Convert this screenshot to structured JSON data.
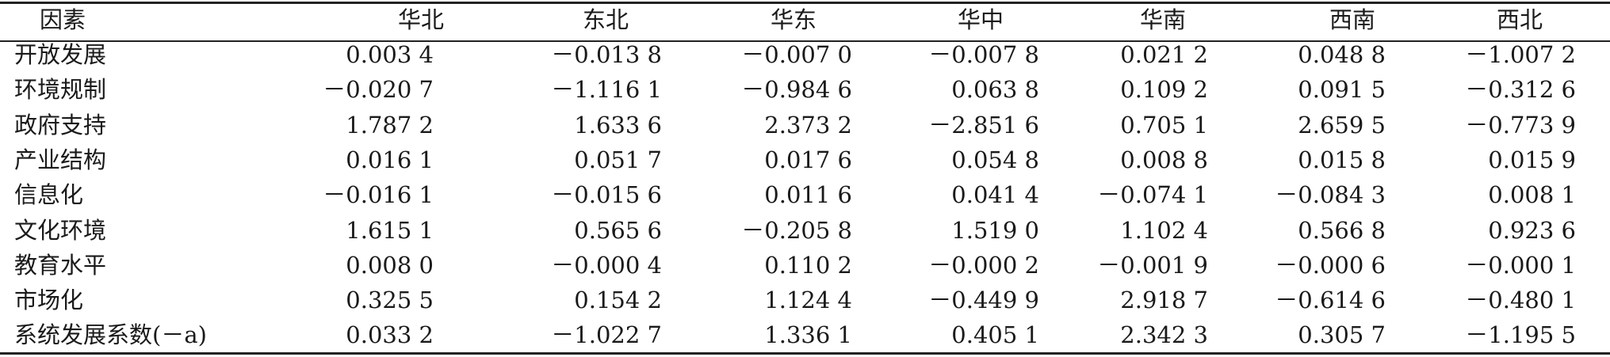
{
  "table": {
    "header": [
      "因素",
      "华北",
      "东北",
      "华东",
      "华中",
      "华南",
      "西南",
      "西北"
    ],
    "rows": [
      [
        "开放发展",
        "0.003 4",
        "－0.013 8",
        "－0.007 0",
        "－0.007 8",
        "0.021 2",
        "0.048 8",
        "－1.007 2"
      ],
      [
        "环境规制",
        "－0.020 7",
        "－1.116 1",
        "－0.984 6",
        "0.063 8",
        "0.109 2",
        "0.091 5",
        "－0.312 6"
      ],
      [
        "政府支持",
        "1.787 2",
        "1.633 6",
        "2.373 2",
        "－2.851 6",
        "0.705 1",
        "2.659 5",
        "－0.773 9"
      ],
      [
        "产业结构",
        "0.016 1",
        "0.051 7",
        "0.017 6",
        "0.054 8",
        "0.008 8",
        "0.015 8",
        "0.015 9"
      ],
      [
        "信息化",
        "－0.016 1",
        "－0.015 6",
        "0.011 6",
        "0.041 4",
        "－0.074 1",
        "－0.084 3",
        "0.008 1"
      ],
      [
        "文化环境",
        "1.615 1",
        "0.565 6",
        "－0.205 8",
        "1.519 0",
        "1.102 4",
        "0.566 8",
        "0.923 6"
      ],
      [
        "教育水平",
        "0.008 0",
        "－0.000 4",
        "0.110 2",
        "－0.000 2",
        "－0.001 9",
        "－0.000 6",
        "－0.000 1"
      ],
      [
        "市场化",
        "0.325 5",
        "0.154 2",
        "1.124 4",
        "－0.449 9",
        "2.918 7",
        "－0.614 6",
        "－0.480 1"
      ],
      [
        "系统发展系数(－a)",
        "0.033 2",
        "－1.022 7",
        "1.336 1",
        "0.405 1",
        "2.342 3",
        "0.305 7",
        "－1.195 5"
      ]
    ]
  }
}
